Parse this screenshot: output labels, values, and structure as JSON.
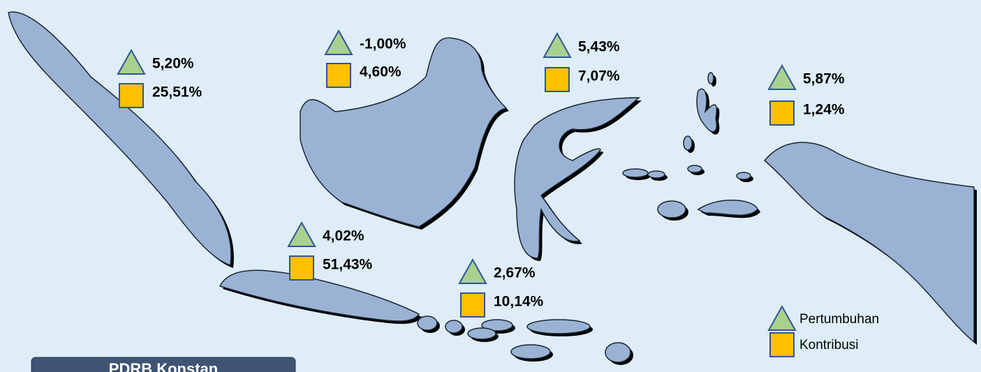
{
  "regions": [
    {
      "growth": "5,20%",
      "contribution": "25,51%"
    },
    {
      "growth": "-1,00%",
      "contribution": "4,60%"
    },
    {
      "growth": "5,43%",
      "contribution": "7,07%"
    },
    {
      "growth": "5,87%",
      "contribution": "1,24%"
    },
    {
      "growth": "4,02%",
      "contribution": "51,43%"
    },
    {
      "growth": "2,67%",
      "contribution": "10,14%"
    }
  ],
  "legend": {
    "growth": "Pertumbuhan",
    "contribution": "Kontribusi"
  },
  "panel": {
    "title": "PDRB Konstan"
  }
}
